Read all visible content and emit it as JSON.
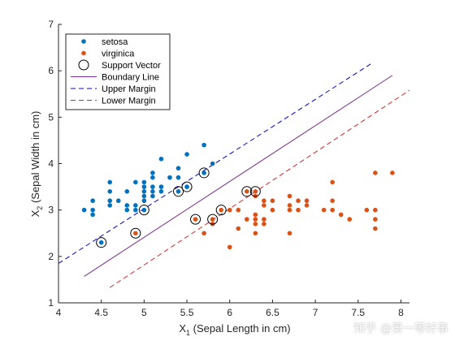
{
  "chart_data": {
    "type": "scatter",
    "x_axis": {
      "label_main": "X",
      "label_sub": "1",
      "label_rest": " (Sepal Length in cm)",
      "range": [
        4,
        8.1
      ],
      "ticks": [
        4,
        4.5,
        5,
        5.5,
        6,
        6.5,
        7,
        7.5,
        8
      ],
      "tick_labels": [
        "4",
        "4.5",
        "5",
        "5.5",
        "6",
        "6.5",
        "7",
        "7.5",
        "8"
      ]
    },
    "y_axis": {
      "label_main": "X",
      "label_sub": "2",
      "label_rest": " (Sepal Width in cm)",
      "range": [
        1,
        7
      ],
      "ticks": [
        1,
        2,
        3,
        4,
        5,
        6,
        7
      ],
      "tick_labels": [
        "1",
        "2",
        "3",
        "4",
        "5",
        "6",
        "7"
      ]
    },
    "grid": false,
    "legend_position": "top-left",
    "legend": [
      {
        "label": "setosa",
        "kind": "dot",
        "color": "#0072BD"
      },
      {
        "label": "virginica",
        "kind": "dot",
        "color": "#D95319"
      },
      {
        "label": "Support Vector",
        "kind": "circle",
        "color": "#000000"
      },
      {
        "label": "Boundary Line",
        "kind": "line",
        "color": "#7E2F8E",
        "dash": ""
      },
      {
        "label": "Upper Margin",
        "kind": "line",
        "color": "#0000CC",
        "dash": "6,4"
      },
      {
        "label": "Lower Margin",
        "kind": "line",
        "color": "#D62728",
        "dash": "6,4"
      }
    ],
    "series": [
      {
        "name": "setosa",
        "color": "#0072BD",
        "points": [
          [
            4.3,
            3.0
          ],
          [
            4.4,
            2.9
          ],
          [
            4.4,
            3.0
          ],
          [
            4.4,
            3.2
          ],
          [
            4.5,
            2.3
          ],
          [
            4.6,
            3.1
          ],
          [
            4.6,
            3.2
          ],
          [
            4.6,
            3.4
          ],
          [
            4.6,
            3.6
          ],
          [
            4.7,
            3.2
          ],
          [
            4.8,
            3.0
          ],
          [
            4.8,
            3.1
          ],
          [
            4.8,
            3.4
          ],
          [
            4.9,
            3.0
          ],
          [
            4.9,
            3.1
          ],
          [
            4.9,
            3.6
          ],
          [
            5.0,
            3.0
          ],
          [
            5.0,
            3.2
          ],
          [
            5.0,
            3.3
          ],
          [
            5.0,
            3.4
          ],
          [
            5.0,
            3.5
          ],
          [
            5.0,
            3.6
          ],
          [
            5.1,
            3.3
          ],
          [
            5.1,
            3.4
          ],
          [
            5.1,
            3.5
          ],
          [
            5.1,
            3.7
          ],
          [
            5.1,
            3.8
          ],
          [
            5.2,
            3.4
          ],
          [
            5.2,
            3.5
          ],
          [
            5.2,
            4.1
          ],
          [
            5.3,
            3.7
          ],
          [
            5.4,
            3.4
          ],
          [
            5.4,
            3.7
          ],
          [
            5.4,
            3.9
          ],
          [
            5.5,
            3.5
          ],
          [
            5.5,
            4.2
          ],
          [
            5.7,
            3.8
          ],
          [
            5.7,
            4.4
          ],
          [
            5.8,
            4.0
          ]
        ]
      },
      {
        "name": "virginica",
        "color": "#D95319",
        "points": [
          [
            4.9,
            2.5
          ],
          [
            5.6,
            2.8
          ],
          [
            5.7,
            2.5
          ],
          [
            5.8,
            2.7
          ],
          [
            5.8,
            2.8
          ],
          [
            5.9,
            3.0
          ],
          [
            6.0,
            2.2
          ],
          [
            6.0,
            3.0
          ],
          [
            6.1,
            2.6
          ],
          [
            6.1,
            3.0
          ],
          [
            6.2,
            2.8
          ],
          [
            6.2,
            3.4
          ],
          [
            6.3,
            2.5
          ],
          [
            6.3,
            2.7
          ],
          [
            6.3,
            2.8
          ],
          [
            6.3,
            2.9
          ],
          [
            6.3,
            3.3
          ],
          [
            6.3,
            3.4
          ],
          [
            6.4,
            2.7
          ],
          [
            6.4,
            2.8
          ],
          [
            6.4,
            3.1
          ],
          [
            6.4,
            3.2
          ],
          [
            6.5,
            3.0
          ],
          [
            6.5,
            3.2
          ],
          [
            6.7,
            2.5
          ],
          [
            6.7,
            3.0
          ],
          [
            6.7,
            3.1
          ],
          [
            6.7,
            3.3
          ],
          [
            6.8,
            3.0
          ],
          [
            6.8,
            3.2
          ],
          [
            6.9,
            3.1
          ],
          [
            6.9,
            3.2
          ],
          [
            7.1,
            3.0
          ],
          [
            7.2,
            3.0
          ],
          [
            7.2,
            3.2
          ],
          [
            7.2,
            3.6
          ],
          [
            7.3,
            2.9
          ],
          [
            7.4,
            2.8
          ],
          [
            7.6,
            3.0
          ],
          [
            7.7,
            2.6
          ],
          [
            7.7,
            2.8
          ],
          [
            7.7,
            3.0
          ],
          [
            7.7,
            3.8
          ],
          [
            7.9,
            3.8
          ]
        ]
      }
    ],
    "support_vectors": [
      [
        4.5,
        2.3
      ],
      [
        4.9,
        2.5
      ],
      [
        5.0,
        3.0
      ],
      [
        5.4,
        3.4
      ],
      [
        5.5,
        3.5
      ],
      [
        5.7,
        3.8
      ],
      [
        5.6,
        2.8
      ],
      [
        5.8,
        2.8
      ],
      [
        5.9,
        3.0
      ],
      [
        6.2,
        3.4
      ],
      [
        6.3,
        3.4
      ]
    ],
    "lines": [
      {
        "name": "Upper Margin",
        "color": "#0000CC",
        "dash": "6,4",
        "from": [
          4.0,
          1.85
        ],
        "to": [
          7.65,
          6.15
        ]
      },
      {
        "name": "Boundary Line",
        "color": "#7E2F8E",
        "dash": "",
        "from": [
          4.3,
          1.57
        ],
        "to": [
          7.9,
          5.9
        ]
      },
      {
        "name": "Lower Margin",
        "color": "#D62728",
        "dash": "6,4",
        "from": [
          4.6,
          1.33
        ],
        "to": [
          8.1,
          5.58
        ]
      }
    ]
  },
  "watermark": "知乎 @第一等好事"
}
